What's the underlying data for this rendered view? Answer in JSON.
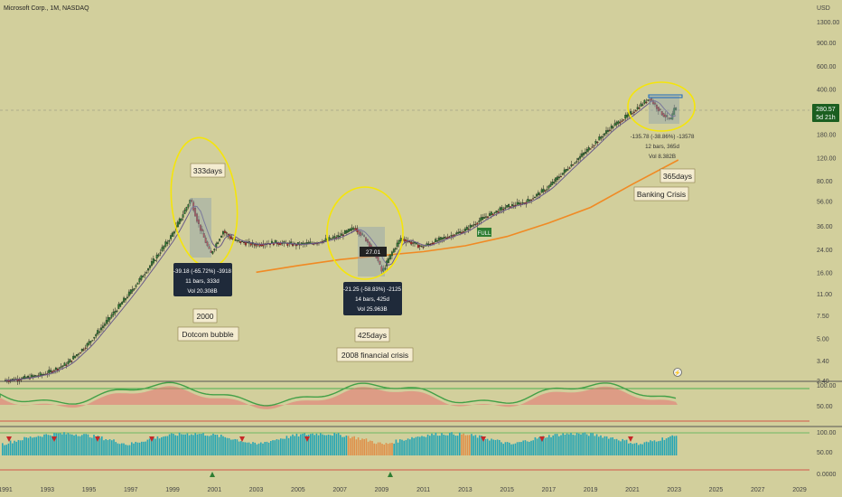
{
  "header": {
    "symbol_title": "Microsoft Corp., 1M, NASDAQ",
    "currency": "USD"
  },
  "price_axis": {
    "ticks": [
      "1300.00",
      "900.00",
      "600.00",
      "400.00",
      "280.57",
      "180.00",
      "120.00",
      "80.00",
      "56.00",
      "36.00",
      "24.00",
      "16.00",
      "11.00",
      "7.50",
      "5.00",
      "3.40",
      "2.40"
    ],
    "last_price": "280.57",
    "countdown": "5d 21h"
  },
  "osc1_axis": [
    "100.00",
    "50.00"
  ],
  "osc2_axis": [
    "100.00",
    "50.00",
    "0.0000"
  ],
  "time_axis": [
    "1991",
    "1993",
    "1995",
    "1997",
    "1999",
    "2001",
    "2003",
    "2005",
    "2007",
    "2009",
    "2011",
    "2013",
    "2015",
    "2017",
    "2019",
    "2021",
    "2023",
    "2025",
    "2027",
    "2029"
  ],
  "annotations": {
    "dotcom": {
      "days_box": "333days",
      "year_box": "2000",
      "event_box": "Dotcom bubble",
      "tooltip": [
        "-39.18 (-65.72%) -3918",
        "11 bars, 333d",
        "Vol 20.308B"
      ]
    },
    "gfc": {
      "days_box": "425days",
      "event_box": "2008 financial crisis",
      "tooltip": [
        "-21.25 (-58.83%) -2125",
        "14 bars, 425d",
        "Vol 25.963B"
      ],
      "marker": "27.01"
    },
    "banking": {
      "days_box": "365days",
      "event_box": "Banking Crisis",
      "tooltip": [
        "-135.78 (-38.86%) -13578",
        "12 bars, 365d",
        "Vol 8.382B"
      ]
    },
    "full_tag": "FULL",
    "lightning_icon": "lightning-icon"
  },
  "chart_data": {
    "type": "line",
    "title": "Microsoft Corp., 1M, NASDAQ",
    "y_scale": "log",
    "ylim": [
      2.4,
      1300
    ],
    "xlim": [
      1991,
      2029
    ],
    "series": [
      {
        "x": [
          1991,
          1992,
          1993,
          1994,
          1995,
          1996,
          1997,
          1998,
          1999,
          1999.5,
          1999.95,
          2000.3,
          2000.9,
          2001.5,
          2002,
          2003,
          2004,
          2005,
          2006,
          2007,
          2007.8,
          2008.3,
          2008.8,
          2009.1,
          2009.6,
          2010,
          2011,
          2012,
          2013,
          2014,
          2015,
          2016,
          2017,
          2018,
          2019,
          2020,
          2021,
          2021.9,
          2022.5,
          2022.9,
          2023.1
        ],
        "y": [
          2.4,
          2.5,
          2.7,
          3.2,
          4.5,
          7,
          11,
          18,
          30,
          42,
          58,
          38,
          22,
          33,
          28,
          26,
          27,
          26,
          27,
          30,
          35,
          29,
          22,
          16,
          23,
          29,
          25,
          29,
          33,
          42,
          50,
          55,
          70,
          100,
          140,
          200,
          260,
          340,
          260,
          230,
          280
        ]
      }
    ],
    "moving_average": {
      "x": [
        2003,
        2005,
        2007,
        2009,
        2011,
        2013,
        2015,
        2017,
        2019,
        2021,
        2023.2
      ],
      "y": [
        16,
        18,
        20,
        21.5,
        23,
        25.5,
        30,
        38,
        50,
        75,
        115
      ]
    },
    "drawdowns": [
      {
        "label": "333days",
        "from": 58,
        "to": 20,
        "bars": 11
      },
      {
        "label": "425days",
        "from": 35,
        "to": 14.5,
        "bars": 14
      },
      {
        "label": "365days",
        "from": 350,
        "to": 214,
        "bars": 12
      }
    ]
  }
}
